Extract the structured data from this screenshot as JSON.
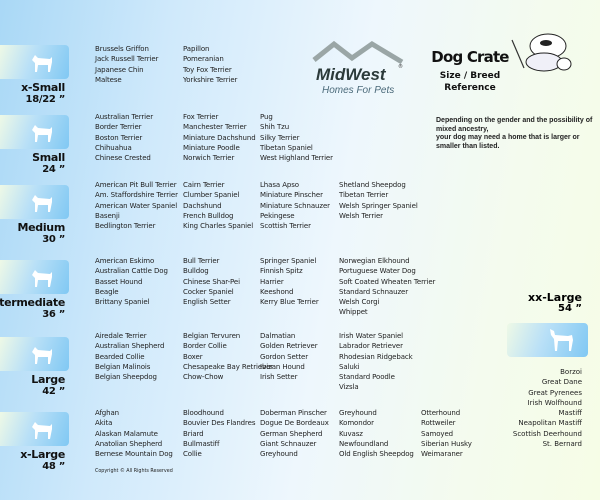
{
  "header": {
    "brand": "MidWest",
    "brand_tagline": "Homes For Pets",
    "registered": "®",
    "title": "Dog Crate",
    "subtitle_line1": "Size / Breed",
    "subtitle_line2": "Reference",
    "note_line1": "Depending on the gender and the possibility of mixed ancestry,",
    "note_line2": "your dog may need  a home that is larger or smaller than listed."
  },
  "groups": [
    {
      "label": "x-Small",
      "size": "18/22 ”",
      "icon": "toy-dog-icon",
      "columns": [
        [
          "Brussels Griffon",
          "Jack Russell Terrier",
          "Japanese Chin",
          "Maltese"
        ],
        [
          "Papillon",
          "Pomeranian",
          "Toy Fox Terrier",
          "Yorkshire Terrier"
        ]
      ]
    },
    {
      "label": "Small",
      "size": "24 ”",
      "icon": "small-dog-icon",
      "columns": [
        [
          "Australian Terrier",
          "Border Terrier",
          "Boston Terrier",
          "Chihuahua",
          "Chinese Crested"
        ],
        [
          "Fox Terrier",
          "Manchester Terrier",
          "Miniature Dachshund",
          "Miniature Poodle",
          "Norwich Terrier"
        ],
        [
          "Pug",
          "Shih Tzu",
          "Silky Terrier",
          "Tibetan Spaniel",
          "West Highland Terrier"
        ]
      ]
    },
    {
      "label": "Medium",
      "size": "30 ”",
      "icon": "medium-dog-icon",
      "columns": [
        [
          "American Pit Bull Terrier",
          "Am. Staffordshire Terrier",
          "American Water Spaniel",
          "Basenji",
          "Bedlington Terrier"
        ],
        [
          "Cairn Terrier",
          "Clumber Spaniel",
          "Dachshund",
          "French Bulldog",
          "King Charles Spaniel"
        ],
        [
          "Lhasa Apso",
          "Miniature Pinscher",
          "Miniature Schnauzer",
          "Pekingese",
          "Scottish Terrier"
        ],
        [
          "Shetland Sheepdog",
          "Tibetan Terrier",
          "Welsh Springer Spaniel",
          "Welsh Terrier"
        ]
      ]
    },
    {
      "label": "Intermediate",
      "size": "36 ”",
      "icon": "intermediate-dog-icon",
      "columns": [
        [
          "American Eskimo",
          "Australian Cattle Dog",
          "Basset Hound",
          "Beagle",
          "Brittany Spaniel"
        ],
        [
          "Bull Terrier",
          "Bulldog",
          "Chinese Shar-Pei",
          "Cocker Spaniel",
          "English Setter"
        ],
        [
          "Springer Spaniel",
          "Finnish Spitz",
          "Harrier",
          "Keeshond",
          "Kerry Blue Terrier"
        ],
        [
          "Norwegian Elkhound",
          "Portuguese Water Dog",
          "Soft Coated Wheaten Terrier",
          "Standard Schnauzer",
          "Welsh Corgi",
          "Whippet"
        ]
      ]
    },
    {
      "label": "Large",
      "size": "42 ”",
      "icon": "large-dog-icon",
      "columns": [
        [
          "Airedale Terrier",
          "Australian Shepherd",
          "Bearded Collie",
          "Belgian Malinois",
          "Belgian Sheepdog"
        ],
        [
          "Belgian Tervuren",
          "Border Collie",
          "Boxer",
          "Chesapeake Bay Retriever",
          "Chow-Chow"
        ],
        [
          "Dalmatian",
          "Golden Retriever",
          "Gordon Setter",
          "Ibizan Hound",
          "Irish Setter"
        ],
        [
          "Irish Water Spaniel",
          "Labrador Retriever",
          "Rhodesian Ridgeback",
          "Saluki",
          "Standard Poodle",
          "Vizsla"
        ]
      ]
    },
    {
      "label": "x-Large",
      "size": "48 ”",
      "icon": "xlarge-dog-icon",
      "columns": [
        [
          "Afghan",
          "Akita",
          "Alaskan Malamute",
          "Anatolian Shepherd",
          "Bernese Mountain Dog"
        ],
        [
          "Bloodhound",
          "Bouvier Des Flandres",
          "Briard",
          "Bullmastiff",
          "Collie"
        ],
        [
          "Doberman Pinscher",
          "Dogue De Bordeaux",
          "German Shepherd",
          "Giant Schnauzer",
          "Greyhound"
        ],
        [
          "Greyhound",
          "Komondor",
          "Kuvasz",
          "Newfoundland",
          "Old English Sheepdog"
        ],
        [
          "Otterhound",
          "Rottweiler",
          "Samoyed",
          "Siberian Husky",
          "Weimaraner"
        ]
      ]
    }
  ],
  "xx_large": {
    "label": "xx-Large",
    "size": "54 ”",
    "icon": "great-dane-icon",
    "breeds": [
      "Borzoi",
      "Great Dane",
      "Great Pyrenees",
      "Irish Wolfhound",
      "Mastiff",
      "Neapolitan Mastiff",
      "Scottish Deerhound",
      "St. Bernard"
    ]
  },
  "footer": {
    "copyright": "Copyright © All Rights Reserved"
  }
}
